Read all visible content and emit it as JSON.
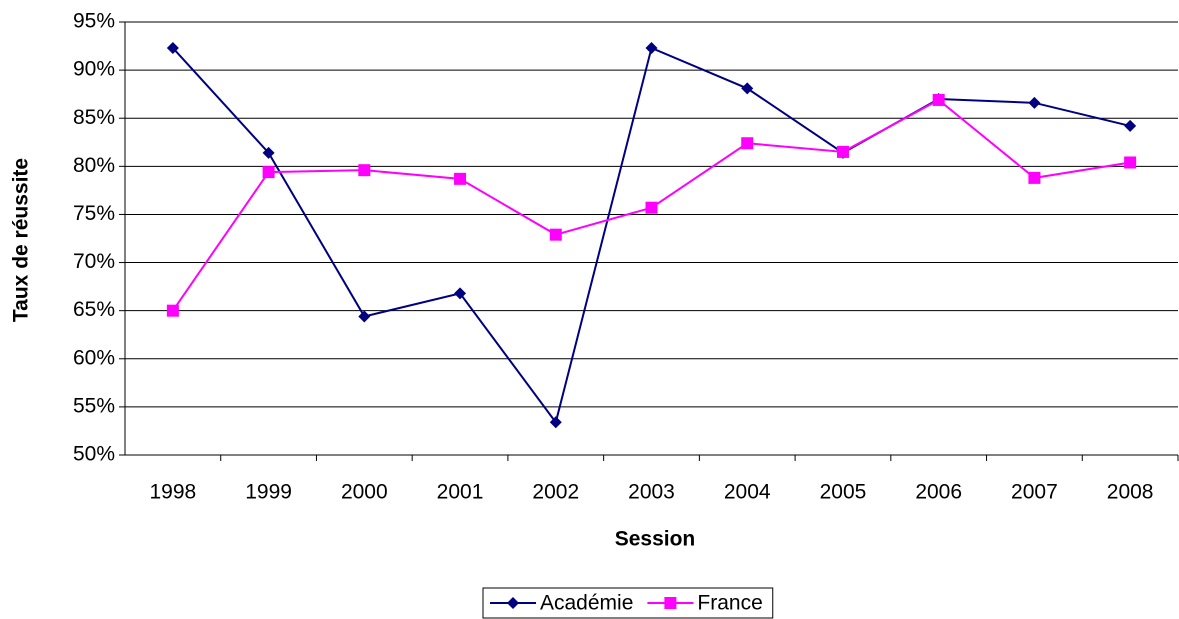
{
  "chart_data": {
    "type": "line",
    "x_label": "Session",
    "y_label": "Taux de réussite",
    "categories": [
      "1998",
      "1999",
      "2000",
      "2001",
      "2002",
      "2003",
      "2004",
      "2005",
      "2006",
      "2007",
      "2008"
    ],
    "series": [
      {
        "name": "Académie",
        "color": "#000080",
        "marker": "diamond",
        "values": [
          92.3,
          81.4,
          64.4,
          66.8,
          53.4,
          92.3,
          88.1,
          81.4,
          87.0,
          86.6,
          84.2
        ]
      },
      {
        "name": "France",
        "color": "#ff00ff",
        "marker": "square",
        "values": [
          65.0,
          79.4,
          79.6,
          78.7,
          72.9,
          75.7,
          82.4,
          81.5,
          86.9,
          78.8,
          80.4
        ]
      }
    ],
    "ylim": [
      50,
      95
    ],
    "yticks": [
      {
        "value": 50,
        "label": "50%"
      },
      {
        "value": 55,
        "label": "55%"
      },
      {
        "value": 60,
        "label": "60%"
      },
      {
        "value": 65,
        "label": "65%"
      },
      {
        "value": 70,
        "label": "70%"
      },
      {
        "value": 75,
        "label": "75%"
      },
      {
        "value": 80,
        "label": "80%"
      },
      {
        "value": 85,
        "label": "85%"
      },
      {
        "value": 90,
        "label": "90%"
      },
      {
        "value": 95,
        "label": "95%"
      }
    ],
    "grid": true,
    "legend": "bottom"
  }
}
